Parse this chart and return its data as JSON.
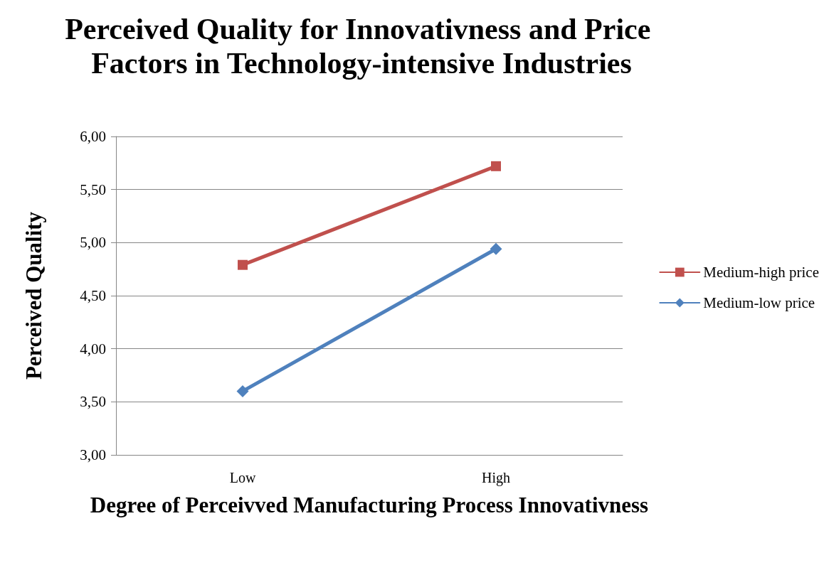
{
  "chart_data": {
    "type": "line",
    "title": "Perceived Quality for Innovativness and Price Factors in Technology-intensive Industries",
    "xlabel": "Degree of Perceivved Manufacturing Process Innovativness",
    "ylabel": "Perceived Quality",
    "categories": [
      "Low",
      "High"
    ],
    "series": [
      {
        "name": "Medium-high price",
        "color": "#c0504d",
        "marker": "square",
        "values": [
          4.79,
          5.72
        ]
      },
      {
        "name": "Medium-low price",
        "color": "#4f81bd",
        "marker": "diamond",
        "values": [
          3.6,
          4.94
        ]
      }
    ],
    "ylim": [
      3,
      6
    ],
    "yticks": [
      {
        "value": 3,
        "label": "3,00"
      },
      {
        "value": 3.5,
        "label": "3,50"
      },
      {
        "value": 4,
        "label": "4,00"
      },
      {
        "value": 4.5,
        "label": "4,50"
      },
      {
        "value": 5,
        "label": "5,00"
      },
      {
        "value": 5.5,
        "label": "5,50"
      },
      {
        "value": 6,
        "label": "6,00"
      }
    ],
    "grid": "y",
    "legend": "right",
    "line_style": "solid"
  }
}
